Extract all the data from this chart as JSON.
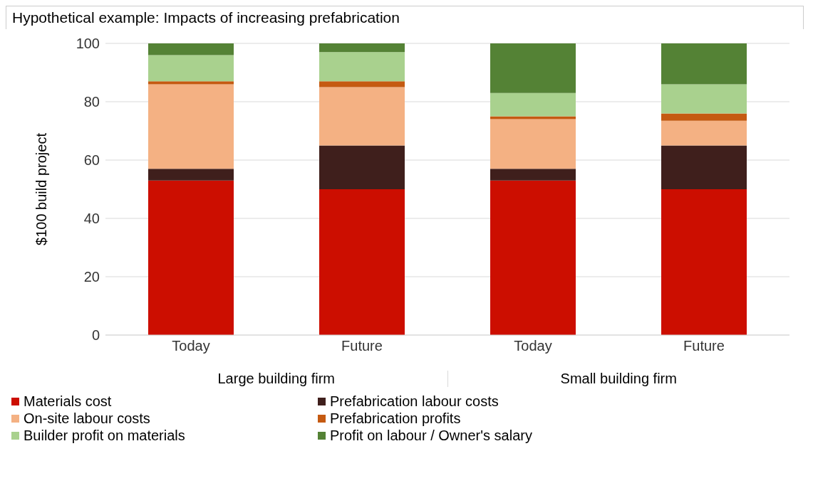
{
  "chart_data": {
    "type": "bar",
    "stacked": true,
    "title": "Hypothetical example:  Impacts of increasing prefabrication",
    "ylabel": "$100 build project",
    "categories": [
      "Today",
      "Future",
      "Today",
      "Future"
    ],
    "annotations": [
      "Large building firm",
      "Small building firm"
    ],
    "series": [
      {
        "name": "Materials cost",
        "color": "#cc0e00",
        "values": [
          53,
          50,
          53,
          50
        ]
      },
      {
        "name": "Prefabrication labour costs",
        "color": "#3f1f1c",
        "values": [
          4,
          15,
          4,
          15
        ]
      },
      {
        "name": "On-site labour costs",
        "color": "#f4b183",
        "values": [
          29,
          20,
          17,
          8.5
        ]
      },
      {
        "name": "Prefabrication profits",
        "color": "#c55a11",
        "values": [
          1,
          2,
          1,
          2.5
        ]
      },
      {
        "name": "Builder profit on materials",
        "color": "#a9d18e",
        "values": [
          9,
          10,
          8,
          10
        ]
      },
      {
        "name": "Profit on labour / Owner's salary",
        "color": "#548235",
        "values": [
          4,
          3,
          17,
          14
        ]
      }
    ],
    "ylim": [
      0,
      100
    ],
    "yticks": [
      0,
      20,
      40,
      60,
      80,
      100
    ],
    "grid": "y",
    "legend": "bottom"
  }
}
